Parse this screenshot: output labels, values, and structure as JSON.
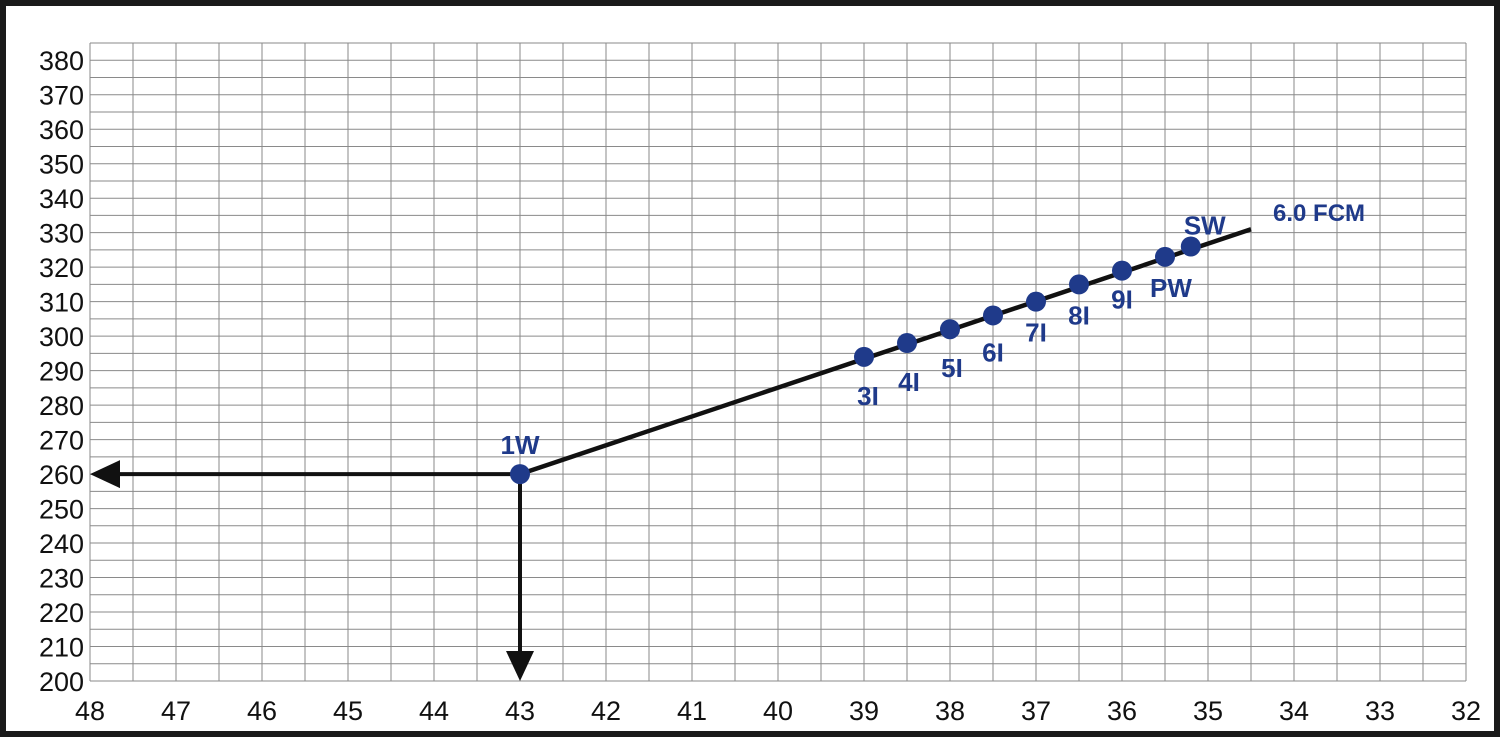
{
  "chart_data": {
    "type": "line",
    "title": "",
    "xlabel": "",
    "ylabel": "",
    "x_axis": {
      "min": 32,
      "max": 48,
      "reversed": true,
      "ticks": [
        48,
        47,
        46,
        45,
        44,
        43,
        42,
        41,
        40,
        39,
        38,
        37,
        36,
        35,
        34,
        33,
        32
      ],
      "minor_step": 0.5
    },
    "y_axis": {
      "min": 200,
      "max": 385,
      "ticks": [
        200,
        210,
        220,
        230,
        240,
        250,
        260,
        270,
        280,
        290,
        300,
        310,
        320,
        330,
        340,
        350,
        360,
        370,
        380
      ]
    },
    "grid": true,
    "series": [
      {
        "name": "6.0 FCM",
        "line": {
          "x": [
            43,
            34.5
          ],
          "y": [
            260,
            331
          ]
        },
        "points": [
          {
            "label": "1W",
            "x": 43,
            "y": 260
          },
          {
            "label": "3I",
            "x": 39,
            "y": 294
          },
          {
            "label": "4I",
            "x": 38.5,
            "y": 298
          },
          {
            "label": "5I",
            "x": 38,
            "y": 302
          },
          {
            "label": "6I",
            "x": 37.5,
            "y": 306
          },
          {
            "label": "7I",
            "x": 37,
            "y": 310
          },
          {
            "label": "8I",
            "x": 36.5,
            "y": 315
          },
          {
            "label": "9I",
            "x": 36,
            "y": 319
          },
          {
            "label": "PW",
            "x": 35.5,
            "y": 323
          },
          {
            "label": "SW",
            "x": 35.2,
            "y": 326
          }
        ]
      }
    ],
    "reference_arrows": [
      {
        "from": {
          "x": 43,
          "y": 260
        },
        "to": {
          "x": 48,
          "y": 260
        }
      },
      {
        "from": {
          "x": 43,
          "y": 260
        },
        "to": {
          "x": 43,
          "y": 200
        }
      }
    ],
    "colors": {
      "points": "#1f3a8a",
      "labels": "#1f3a8a",
      "line": "#111111",
      "grid": "#8a8a8a"
    }
  }
}
